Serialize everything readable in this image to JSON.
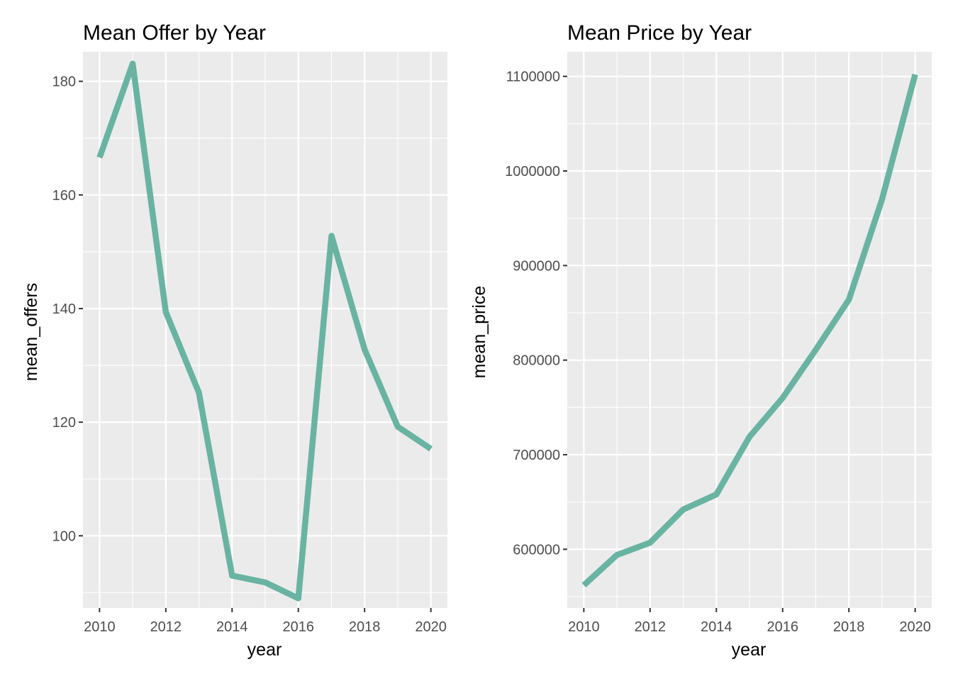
{
  "chart_data": [
    {
      "type": "line",
      "title": "Mean Offer by Year",
      "xlabel": "year",
      "ylabel": "mean_offers",
      "x_ticks": [
        "2010",
        "2012",
        "2014",
        "2016",
        "2018",
        "2020"
      ],
      "y_ticks": [
        "100",
        "120",
        "140",
        "160",
        "180"
      ],
      "xlim": [
        2009.5,
        2020.5
      ],
      "ylim": [
        87.3,
        185.2
      ],
      "x": [
        2010,
        2011,
        2012,
        2013,
        2014,
        2015,
        2016,
        2017,
        2018,
        2019,
        2020
      ],
      "series": [
        {
          "values": [
            166.6,
            183.1,
            139.4,
            125.2,
            93.0,
            91.8,
            89.0,
            152.8,
            132.8,
            119.2,
            115.3
          ],
          "color": "#69b3a2"
        }
      ],
      "grid": true,
      "legend": "none"
    },
    {
      "type": "line",
      "title": "Mean Price by Year",
      "xlabel": "year",
      "ylabel": "mean_price",
      "x_ticks": [
        "2010",
        "2012",
        "2014",
        "2016",
        "2018",
        "2020"
      ],
      "y_ticks": [
        "600000",
        "700000",
        "800000",
        "900000",
        "1000000",
        "1100000"
      ],
      "xlim": [
        2009.5,
        2020.5
      ],
      "ylim": [
        538000,
        1126000
      ],
      "x": [
        2010,
        2011,
        2012,
        2013,
        2014,
        2015,
        2016,
        2017,
        2018,
        2019,
        2020
      ],
      "series": [
        {
          "values": [
            562000,
            594000,
            607000,
            642000,
            658000,
            719000,
            760000,
            811000,
            864000,
            970000,
            1102000
          ],
          "color": "#69b3a2"
        }
      ],
      "grid": true,
      "legend": "none"
    }
  ]
}
